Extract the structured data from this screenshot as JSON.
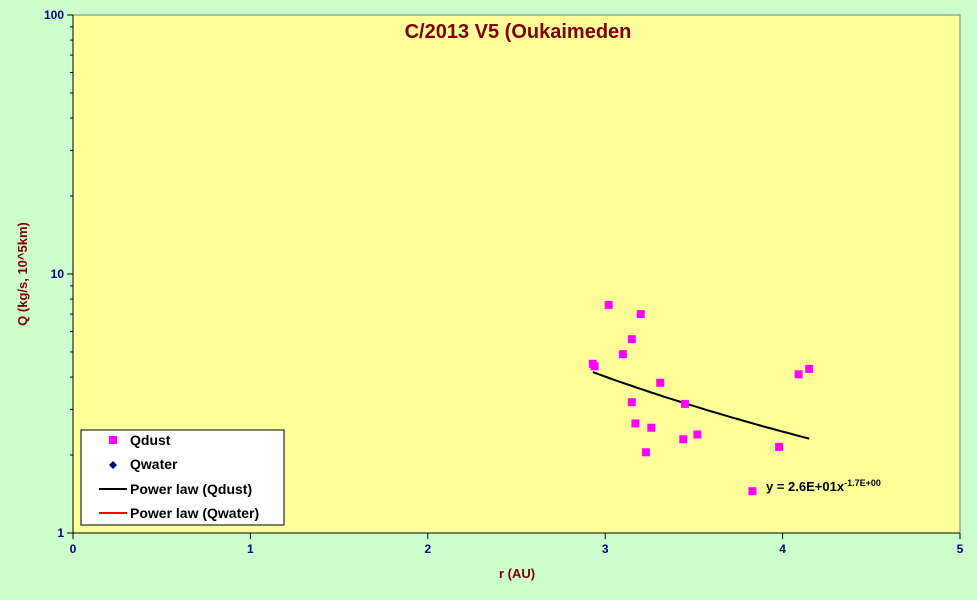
{
  "chart_data": {
    "type": "scatter",
    "title": "C/2013 V5 (Oukaimeden",
    "xlabel": "r (AU)",
    "ylabel": "Q (kg/s, 10^5km)",
    "xlim": [
      0,
      5
    ],
    "ylim": [
      1,
      100
    ],
    "yscale": "log",
    "grid": false,
    "legend_position": "bottom-left",
    "x_ticks": [
      "0",
      "1",
      "2",
      "3",
      "4",
      "5"
    ],
    "y_ticks": [
      "1",
      "10",
      "100"
    ],
    "plot_background": "#ffff99",
    "series": [
      {
        "name": "Qdust",
        "marker": "square",
        "color": "#ff00ff",
        "x": [
          2.93,
          3.02,
          3.2,
          3.15,
          3.1,
          2.94,
          3.31,
          3.15,
          3.45,
          3.17,
          3.26,
          3.52,
          3.44,
          3.23,
          3.98,
          4.09,
          4.15,
          3.83
        ],
        "y": [
          4.5,
          7.6,
          7.0,
          5.6,
          4.9,
          4.4,
          3.8,
          3.2,
          3.15,
          2.65,
          2.55,
          2.4,
          2.3,
          2.05,
          2.15,
          4.1,
          4.3,
          1.45
        ]
      },
      {
        "name": "Qwater",
        "marker": "diamond",
        "color": "#000080",
        "x": [],
        "y": []
      }
    ],
    "fits": [
      {
        "name": "Power law (Qdust)",
        "color": "#000000",
        "coef": 26,
        "exponent": -1.7,
        "x_range": [
          2.93,
          4.15
        ]
      },
      {
        "name": "Power law (Qwater)",
        "color": "#ff0000"
      }
    ],
    "annotation": {
      "base": "y = 2.6E+01x",
      "exponent": "-1.7E+00"
    }
  }
}
